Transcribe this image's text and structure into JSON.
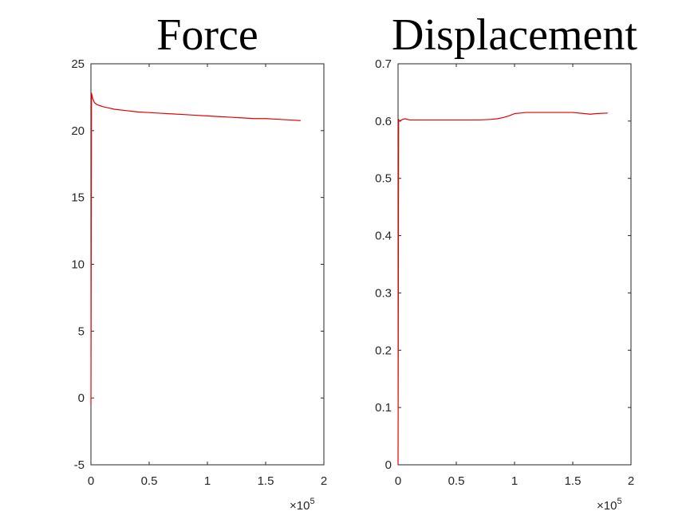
{
  "chart_data": [
    {
      "type": "line",
      "title": "Force",
      "xlabel": "",
      "ylabel": "",
      "xlim": [
        0,
        2
      ],
      "ylim": [
        -5,
        25
      ],
      "x_ticks": [
        "0",
        "0.5",
        "1",
        "1.5",
        "2"
      ],
      "y_ticks": [
        "-5",
        "0",
        "5",
        "10",
        "15",
        "20",
        "25"
      ],
      "x_multiplier_base": "×10",
      "x_multiplier_exp": "5",
      "grid": false,
      "series": [
        {
          "color": "#e60000",
          "x": [
            0,
            0.005,
            0.01,
            0.015,
            0.02,
            0.03,
            0.05,
            0.1,
            0.15,
            0.2,
            0.3,
            0.4,
            0.5,
            0.6,
            0.7,
            0.8,
            0.9,
            1.0,
            1.1,
            1.2,
            1.3,
            1.4,
            1.5,
            1.6,
            1.7,
            1.8
          ],
          "y": [
            -0.5,
            22.8,
            22.6,
            22.4,
            22.3,
            22.1,
            21.95,
            21.8,
            21.7,
            21.6,
            21.5,
            21.4,
            21.35,
            21.3,
            21.25,
            21.2,
            21.15,
            21.1,
            21.05,
            21.0,
            20.95,
            20.9,
            20.9,
            20.85,
            20.8,
            20.75
          ]
        }
      ]
    },
    {
      "type": "line",
      "title": "Displacement",
      "xlabel": "",
      "ylabel": "",
      "xlim": [
        0,
        2
      ],
      "ylim": [
        0,
        0.7
      ],
      "x_ticks": [
        "0",
        "0.5",
        "1",
        "1.5",
        "2"
      ],
      "y_ticks": [
        "0",
        "0.1",
        "0.2",
        "0.3",
        "0.4",
        "0.5",
        "0.6",
        "0.7"
      ],
      "x_multiplier_base": "×10",
      "x_multiplier_exp": "5",
      "grid": false,
      "series": [
        {
          "color": "#e60000",
          "x": [
            0,
            0.005,
            0.01,
            0.02,
            0.04,
            0.06,
            0.1,
            0.2,
            0.3,
            0.4,
            0.5,
            0.6,
            0.7,
            0.8,
            0.85,
            0.9,
            0.95,
            1.0,
            1.05,
            1.1,
            1.2,
            1.3,
            1.4,
            1.5,
            1.6,
            1.65,
            1.7,
            1.8
          ],
          "y": [
            0,
            0.603,
            0.6,
            0.601,
            0.603,
            0.604,
            0.602,
            0.602,
            0.602,
            0.602,
            0.602,
            0.602,
            0.602,
            0.603,
            0.604,
            0.606,
            0.609,
            0.613,
            0.614,
            0.615,
            0.615,
            0.615,
            0.615,
            0.615,
            0.613,
            0.612,
            0.613,
            0.614
          ]
        }
      ]
    }
  ]
}
